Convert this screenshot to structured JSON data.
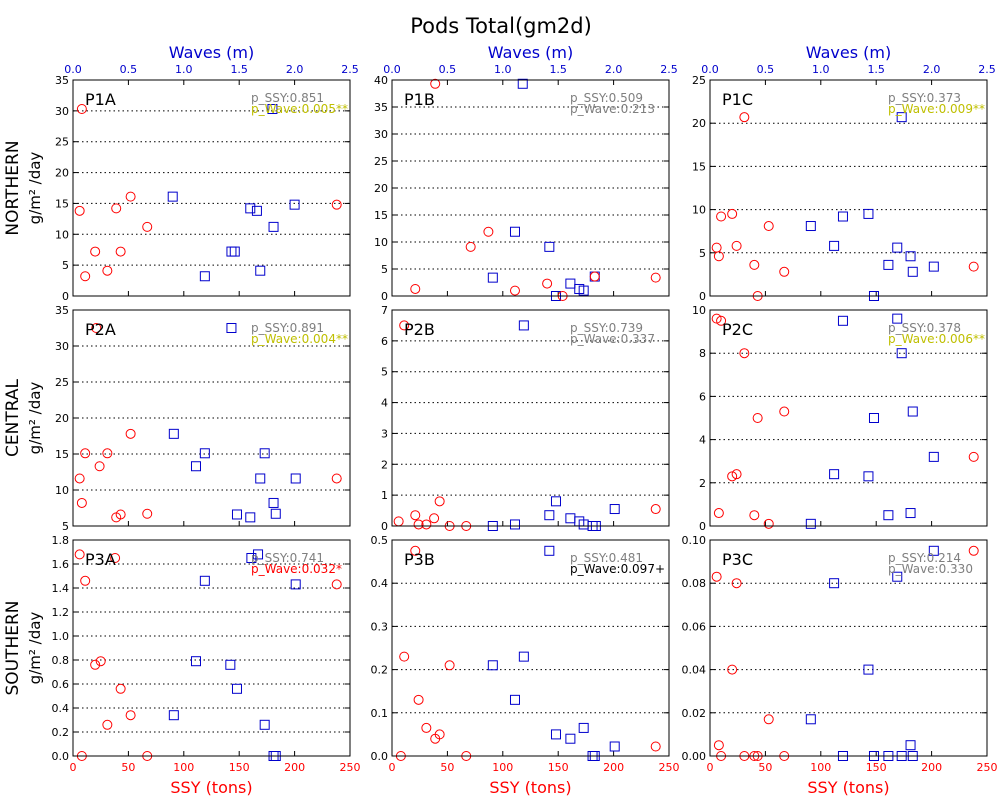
{
  "title": "Pods Total(gm2d)",
  "colors": {
    "ssy": "#ff0000",
    "wave": "#0000cc",
    "p_gray": "#7f7f7f",
    "p_yellow": "#bfbf00",
    "p_red": "#ff0000",
    "p_black": "#000000",
    "grid": "#000000"
  },
  "region_labels": [
    "NORTHERN",
    "CENTRAL",
    "SOUTHERN"
  ],
  "ylabel_unit": "g/m² /day",
  "chart_data": [
    {
      "type": "scatter",
      "panel": "P1A",
      "top_xlabel": "Waves (m)",
      "bottom_xlabel": "",
      "xlim_ssy": [
        0,
        250
      ],
      "xticks_ssy": [
        "0",
        "50",
        "100",
        "150",
        "200",
        "250"
      ],
      "xlim_wave": [
        0,
        2.5
      ],
      "xticks_wave": [
        "0.0",
        "0.5",
        "1.0",
        "1.5",
        "2.0",
        "2.5"
      ],
      "ylim": [
        0,
        35
      ],
      "yticks": [
        "0",
        "5",
        "10",
        "15",
        "20",
        "25",
        "30",
        "35"
      ],
      "grid": "dotted horizontal",
      "p_ssy": "p_SSY:0.851",
      "p_ssy_color": "gray",
      "p_wave": "p_Wave:0.005**",
      "p_wave_color": "yellow",
      "ssy_points": [
        [
          8,
          30.3
        ],
        [
          6,
          13.8
        ],
        [
          11,
          3.2
        ],
        [
          20,
          7.2
        ],
        [
          31,
          4.1
        ],
        [
          39,
          14.2
        ],
        [
          43,
          7.2
        ],
        [
          52,
          16.1
        ],
        [
          67,
          11.2
        ],
        [
          238,
          14.8
        ]
      ],
      "wave_points": [
        [
          0.9,
          16.1
        ],
        [
          1.19,
          3.2
        ],
        [
          1.43,
          7.2
        ],
        [
          1.46,
          7.2
        ],
        [
          1.6,
          14.2
        ],
        [
          1.66,
          13.8
        ],
        [
          1.69,
          4.1
        ],
        [
          1.8,
          30.3
        ],
        [
          1.81,
          11.2
        ],
        [
          2.0,
          14.8
        ]
      ]
    },
    {
      "type": "scatter",
      "panel": "P1B",
      "top_xlabel": "Waves (m)",
      "bottom_xlabel": "",
      "xlim_ssy": [
        0,
        250
      ],
      "xticks_ssy": [
        "0",
        "50",
        "100",
        "150",
        "200",
        "250"
      ],
      "xlim_wave": [
        0,
        2.5
      ],
      "xticks_wave": [
        "0.0",
        "0.5",
        "1.0",
        "1.5",
        "2.0",
        "2.5"
      ],
      "ylim": [
        0,
        40
      ],
      "yticks": [
        "0",
        "5",
        "10",
        "15",
        "20",
        "25",
        "30",
        "35",
        "40"
      ],
      "grid": "dotted horizontal",
      "p_ssy": "p_SSY:0.509",
      "p_ssy_color": "gray",
      "p_wave": "p_Wave:0.213",
      "p_wave_color": "gray",
      "ssy_points": [
        [
          21,
          1.3
        ],
        [
          39,
          39.3
        ],
        [
          71,
          9.1
        ],
        [
          87,
          11.9
        ],
        [
          111,
          1.0
        ],
        [
          140,
          2.3
        ],
        [
          154,
          0.0
        ],
        [
          183,
          3.6
        ],
        [
          238,
          3.4
        ]
      ],
      "wave_points": [
        [
          0.91,
          3.4
        ],
        [
          1.11,
          11.9
        ],
        [
          1.18,
          39.3
        ],
        [
          1.42,
          9.1
        ],
        [
          1.48,
          0.0
        ],
        [
          1.61,
          2.3
        ],
        [
          1.69,
          1.3
        ],
        [
          1.73,
          1.0
        ],
        [
          1.83,
          3.6
        ]
      ]
    },
    {
      "type": "scatter",
      "panel": "P1C",
      "top_xlabel": "Waves (m)",
      "bottom_xlabel": "",
      "xlim_ssy": [
        0,
        250
      ],
      "xticks_ssy": [
        "0",
        "50",
        "100",
        "150",
        "200",
        "250"
      ],
      "xlim_wave": [
        0,
        2.5
      ],
      "xticks_wave": [
        "0.0",
        "0.5",
        "1.0",
        "1.5",
        "2.0",
        "2.5"
      ],
      "ylim": [
        0,
        25
      ],
      "yticks": [
        "0",
        "5",
        "10",
        "15",
        "20",
        "25"
      ],
      "grid": "dotted horizontal",
      "p_ssy": "p_SSY:0.373",
      "p_ssy_color": "gray",
      "p_wave": "p_Wave:0.009**",
      "p_wave_color": "yellow",
      "ssy_points": [
        [
          6,
          5.6
        ],
        [
          8,
          4.6
        ],
        [
          10,
          9.2
        ],
        [
          20,
          9.5
        ],
        [
          24,
          5.8
        ],
        [
          31,
          20.7
        ],
        [
          40,
          3.6
        ],
        [
          43,
          0.0
        ],
        [
          53,
          8.1
        ],
        [
          67,
          2.8
        ],
        [
          238,
          3.4
        ]
      ],
      "wave_points": [
        [
          0.91,
          8.1
        ],
        [
          1.12,
          5.8
        ],
        [
          1.2,
          9.2
        ],
        [
          1.43,
          9.5
        ],
        [
          1.48,
          0.0
        ],
        [
          1.61,
          3.6
        ],
        [
          1.69,
          5.6
        ],
        [
          1.73,
          20.7
        ],
        [
          1.81,
          4.6
        ],
        [
          1.83,
          2.8
        ],
        [
          2.02,
          3.4
        ]
      ]
    },
    {
      "type": "scatter",
      "panel": "P2A",
      "top_xlabel": "",
      "bottom_xlabel": "",
      "xlim_ssy": [
        0,
        250
      ],
      "xticks_ssy": [
        "0",
        "50",
        "100",
        "150",
        "200",
        "250"
      ],
      "ylim": [
        5,
        35
      ],
      "yticks": [
        "5",
        "10",
        "15",
        "20",
        "25",
        "30",
        "35"
      ],
      "grid": "dotted horizontal",
      "p_ssy": "p_SSY:0.891",
      "p_ssy_color": "gray",
      "p_wave": "p_Wave:0.004**",
      "p_wave_color": "yellow",
      "ssy_points": [
        [
          6,
          11.6
        ],
        [
          8,
          8.2
        ],
        [
          11,
          15.1
        ],
        [
          21,
          32.5
        ],
        [
          24,
          13.3
        ],
        [
          31,
          15.1
        ],
        [
          39,
          6.2
        ],
        [
          43,
          6.6
        ],
        [
          52,
          17.8
        ],
        [
          67,
          6.7
        ],
        [
          238,
          11.6
        ]
      ],
      "wave_points": [
        [
          0.91,
          17.8
        ],
        [
          1.11,
          13.3
        ],
        [
          1.19,
          15.1
        ],
        [
          1.43,
          32.5
        ],
        [
          1.48,
          6.6
        ],
        [
          1.6,
          6.2
        ],
        [
          1.69,
          11.6
        ],
        [
          1.73,
          15.1
        ],
        [
          1.81,
          8.2
        ],
        [
          1.83,
          6.7
        ],
        [
          2.01,
          11.6
        ]
      ]
    },
    {
      "type": "scatter",
      "panel": "P2B",
      "top_xlabel": "",
      "bottom_xlabel": "",
      "xlim_ssy": [
        0,
        250
      ],
      "xticks_ssy": [
        "0",
        "50",
        "100",
        "150",
        "200",
        "250"
      ],
      "ylim": [
        0,
        7
      ],
      "yticks": [
        "0",
        "1",
        "2",
        "3",
        "4",
        "5",
        "6",
        "7"
      ],
      "grid": "dotted horizontal",
      "p_ssy": "p_SSY:0.739",
      "p_ssy_color": "gray",
      "p_wave": "p_Wave:0.337",
      "p_wave_color": "gray",
      "ssy_points": [
        [
          6,
          0.15
        ],
        [
          11,
          6.5
        ],
        [
          21,
          0.35
        ],
        [
          24,
          0.05
        ],
        [
          31,
          0.05
        ],
        [
          38,
          0.25
        ],
        [
          43,
          0.8
        ],
        [
          52,
          0.0
        ],
        [
          67,
          0.0
        ],
        [
          238,
          0.55
        ]
      ],
      "wave_points": [
        [
          0.91,
          0.0
        ],
        [
          1.11,
          0.05
        ],
        [
          1.19,
          6.5
        ],
        [
          1.42,
          0.35
        ],
        [
          1.48,
          0.8
        ],
        [
          1.61,
          0.25
        ],
        [
          1.69,
          0.15
        ],
        [
          1.73,
          0.05
        ],
        [
          1.81,
          0.0
        ],
        [
          1.84,
          0.0
        ],
        [
          2.01,
          0.55
        ]
      ]
    },
    {
      "type": "scatter",
      "panel": "P2C",
      "top_xlabel": "",
      "bottom_xlabel": "",
      "xlim_ssy": [
        0,
        250
      ],
      "xticks_ssy": [
        "0",
        "50",
        "100",
        "150",
        "200",
        "250"
      ],
      "ylim": [
        0,
        10
      ],
      "yticks": [
        "0",
        "2",
        "4",
        "6",
        "8",
        "10"
      ],
      "grid": "dotted horizontal",
      "p_ssy": "p_SSY:0.378",
      "p_ssy_color": "gray",
      "p_wave": "p_Wave:0.006**",
      "p_wave_color": "yellow",
      "ssy_points": [
        [
          6,
          9.6
        ],
        [
          8,
          0.6
        ],
        [
          10,
          9.5
        ],
        [
          20,
          2.3
        ],
        [
          24,
          2.4
        ],
        [
          31,
          8.0
        ],
        [
          40,
          0.5
        ],
        [
          43,
          5.0
        ],
        [
          53,
          0.1
        ],
        [
          67,
          5.3
        ],
        [
          238,
          3.2
        ]
      ],
      "wave_points": [
        [
          0.91,
          0.1
        ],
        [
          1.12,
          2.4
        ],
        [
          1.2,
          9.5
        ],
        [
          1.43,
          2.3
        ],
        [
          1.48,
          5.0
        ],
        [
          1.61,
          0.5
        ],
        [
          1.69,
          9.6
        ],
        [
          1.73,
          8.0
        ],
        [
          1.81,
          0.6
        ],
        [
          1.83,
          5.3
        ],
        [
          2.02,
          3.2
        ]
      ]
    },
    {
      "type": "scatter",
      "panel": "P3A",
      "top_xlabel": "",
      "bottom_xlabel": "SSY (tons)",
      "xlim_ssy": [
        0,
        250
      ],
      "xticks_ssy": [
        "0",
        "50",
        "100",
        "150",
        "200",
        "250"
      ],
      "ylim": [
        0,
        1.8
      ],
      "yticks": [
        "0.0",
        "0.2",
        "0.4",
        "0.6",
        "0.8",
        "1.0",
        "1.2",
        "1.4",
        "1.6",
        "1.8"
      ],
      "grid": "dotted horizontal",
      "p_ssy": "p_SSY:0.741",
      "p_ssy_color": "gray",
      "p_wave": "p_Wave:0.032*",
      "p_wave_color": "red",
      "ssy_points": [
        [
          6,
          1.68
        ],
        [
          8,
          0.0
        ],
        [
          11,
          1.46
        ],
        [
          20,
          0.76
        ],
        [
          25,
          0.79
        ],
        [
          31,
          0.26
        ],
        [
          38,
          1.65
        ],
        [
          43,
          0.56
        ],
        [
          52,
          0.34
        ],
        [
          67,
          0.0
        ],
        [
          238,
          1.43
        ]
      ],
      "wave_points": [
        [
          0.91,
          0.34
        ],
        [
          1.11,
          0.79
        ],
        [
          1.19,
          1.46
        ],
        [
          1.42,
          0.76
        ],
        [
          1.48,
          0.56
        ],
        [
          1.61,
          1.65
        ],
        [
          1.67,
          1.68
        ],
        [
          1.73,
          0.26
        ],
        [
          1.81,
          0.0
        ],
        [
          1.83,
          0.0
        ],
        [
          2.01,
          1.43
        ]
      ]
    },
    {
      "type": "scatter",
      "panel": "P3B",
      "top_xlabel": "",
      "bottom_xlabel": "SSY (tons)",
      "xlim_ssy": [
        0,
        250
      ],
      "xticks_ssy": [
        "0",
        "50",
        "100",
        "150",
        "200",
        "250"
      ],
      "ylim": [
        0,
        0.5
      ],
      "yticks": [
        "0.0",
        "0.1",
        "0.2",
        "0.3",
        "0.4",
        "0.5"
      ],
      "grid": "dotted horizontal",
      "p_ssy": "p_SSY:0.481",
      "p_ssy_color": "gray",
      "p_wave": "p_Wave:0.097+",
      "p_wave_color": "black",
      "ssy_points": [
        [
          8,
          0.0
        ],
        [
          11,
          0.23
        ],
        [
          21,
          0.475
        ],
        [
          24,
          0.13
        ],
        [
          31,
          0.065
        ],
        [
          39,
          0.04
        ],
        [
          43,
          0.05
        ],
        [
          52,
          0.21
        ],
        [
          67,
          0.0
        ],
        [
          238,
          0.022
        ]
      ],
      "wave_points": [
        [
          0.91,
          0.21
        ],
        [
          1.11,
          0.13
        ],
        [
          1.19,
          0.23
        ],
        [
          1.42,
          0.475
        ],
        [
          1.48,
          0.05
        ],
        [
          1.61,
          0.04
        ],
        [
          1.73,
          0.065
        ],
        [
          1.81,
          0.0
        ],
        [
          1.83,
          0.0
        ],
        [
          2.01,
          0.022
        ]
      ]
    },
    {
      "type": "scatter",
      "panel": "P3C",
      "top_xlabel": "",
      "bottom_xlabel": "SSY (tons)",
      "xlim_ssy": [
        0,
        250
      ],
      "xticks_ssy": [
        "0",
        "50",
        "100",
        "150",
        "200",
        "250"
      ],
      "ylim": [
        0,
        0.1
      ],
      "yticks": [
        "0.00",
        "0.02",
        "0.04",
        "0.06",
        "0.08",
        "0.10"
      ],
      "grid": "dotted horizontal",
      "p_ssy": "p_SSY:0.214",
      "p_ssy_color": "gray",
      "p_wave": "p_Wave:0.330",
      "p_wave_color": "gray",
      "ssy_points": [
        [
          6,
          0.083
        ],
        [
          8,
          0.005
        ],
        [
          10,
          0.0
        ],
        [
          20,
          0.04
        ],
        [
          24,
          0.08
        ],
        [
          31,
          0.0
        ],
        [
          40,
          0.0
        ],
        [
          43,
          0.0
        ],
        [
          53,
          0.017
        ],
        [
          67,
          0.0
        ],
        [
          238,
          0.095
        ]
      ],
      "wave_points": [
        [
          0.91,
          0.017
        ],
        [
          1.12,
          0.08
        ],
        [
          1.2,
          0.0
        ],
        [
          1.43,
          0.04
        ],
        [
          1.48,
          0.0
        ],
        [
          1.61,
          0.0
        ],
        [
          1.69,
          0.083
        ],
        [
          1.73,
          0.0
        ],
        [
          1.81,
          0.005
        ],
        [
          1.83,
          0.0
        ],
        [
          2.02,
          0.095
        ]
      ]
    }
  ]
}
